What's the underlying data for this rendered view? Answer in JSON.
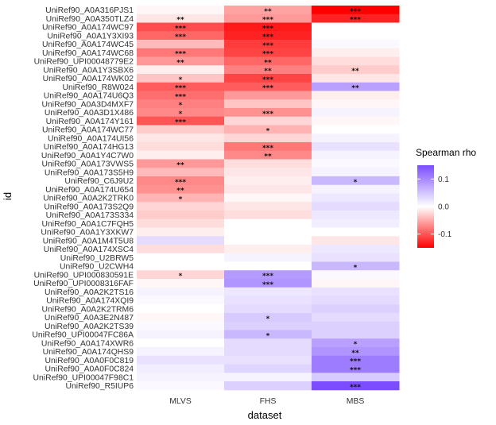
{
  "chart_data": {
    "type": "heatmap",
    "xlabel": "dataset",
    "ylabel": "id",
    "columns": [
      "MLVS",
      "FHS",
      "MBS"
    ],
    "rows": [
      "UniRef90_A0A316PJS1",
      "UniRef90_A0A350TLZ4",
      "UniRef90_A0A174WC97",
      "UniRef90_A0A1Y3XI93",
      "UniRef90_A0A174WC45",
      "UniRef90_A0A174WC68",
      "UniRef90_UPI00048779E2",
      "UniRef90_A0A1Y3SBX6",
      "UniRef90_A0A174WK02",
      "UniRef90_R8W024",
      "UniRef90_A0A174U6Q3",
      "UniRef90_A0A3D4MXF7",
      "UniRef90_A0A3D1X486",
      "UniRef90_A0A174Y161",
      "UniRef90_A0A174WC77",
      "UniRef90_A0A174UI56",
      "UniRef90_A0A174HG13",
      "UniRef90_A0A1Y4C7W0",
      "UniRef90_A0A173VWS5",
      "UniRef90_A0A173S5H9",
      "UniRef90_C6J9U2",
      "UniRef90_A0A174U654",
      "UniRef90_A0A2K2TRK0",
      "UniRef90_A0A173S2Q9",
      "UniRef90_A0A173S334",
      "UniRef90_A0A1C7FQH5",
      "UniRef90_A0A1Y3XKW7",
      "UniRef90_A0A1M4T5U8",
      "UniRef90_A0A174XSC4",
      "UniRef90_U2BRW5",
      "UniRef90_U2CWH4",
      "UniRef90_UPI000830591E",
      "UniRef90_UPI0008316FAF",
      "UniRef90_A0A2K2TS16",
      "UniRef90_A0A174XQI9",
      "UniRef90_A0A2K2TRM6",
      "UniRef90_A0A3E2N487",
      "UniRef90_A0A2K2TS39",
      "UniRef90_UPI00047FC86A",
      "UniRef90_A0A174XWR6",
      "UniRef90_A0A174QHS9",
      "UniRef90_A0A0F0C819",
      "UniRef90_A0A0F0C824",
      "UniRef90_UPI00047F98C1",
      "UniRef90_R5IUP6"
    ],
    "values": [
      [
        -0.005,
        -0.055,
        -0.15
      ],
      [
        -0.015,
        -0.06,
        -0.13
      ],
      [
        -0.105,
        -0.135,
        0.0
      ],
      [
        -0.09,
        -0.13,
        0.0
      ],
      [
        -0.04,
        -0.115,
        0.005
      ],
      [
        -0.08,
        -0.11,
        -0.01
      ],
      [
        -0.06,
        -0.09,
        -0.02
      ],
      [
        -0.01,
        -0.075,
        -0.03
      ],
      [
        -0.035,
        -0.11,
        -0.015
      ],
      [
        -0.095,
        -0.095,
        0.08
      ],
      [
        -0.085,
        -0.06,
        -0.01
      ],
      [
        -0.075,
        -0.035,
        -0.005
      ],
      [
        -0.07,
        -0.065,
        0.01
      ],
      [
        -0.1,
        -0.025,
        -0.005
      ],
      [
        -0.03,
        -0.045,
        0.0
      ],
      [
        -0.015,
        -0.025,
        0.01
      ],
      [
        -0.02,
        -0.08,
        0.025
      ],
      [
        -0.01,
        -0.07,
        0.01
      ],
      [
        -0.06,
        -0.02,
        0.005
      ],
      [
        -0.04,
        -0.015,
        0.01
      ],
      [
        -0.07,
        -0.01,
        0.06
      ],
      [
        -0.065,
        -0.015,
        0.01
      ],
      [
        -0.045,
        -0.005,
        0.02
      ],
      [
        -0.025,
        -0.015,
        0.03
      ],
      [
        -0.03,
        -0.02,
        0.02
      ],
      [
        -0.02,
        0.0,
        0.015
      ],
      [
        -0.01,
        0.0,
        0.0
      ],
      [
        0.03,
        0.0,
        -0.015
      ],
      [
        -0.02,
        -0.01,
        0.02
      ],
      [
        0.0,
        0.01,
        0.025
      ],
      [
        0.0,
        0.0,
        0.06
      ],
      [
        -0.025,
        0.085,
        0.005
      ],
      [
        -0.005,
        0.09,
        -0.005
      ],
      [
        0.01,
        0.02,
        0.025
      ],
      [
        0.005,
        0.025,
        0.03
      ],
      [
        0.0,
        0.03,
        0.04
      ],
      [
        -0.005,
        0.045,
        0.03
      ],
      [
        0.005,
        0.04,
        0.04
      ],
      [
        0.01,
        0.06,
        0.04
      ],
      [
        0.0,
        0.03,
        0.08
      ],
      [
        0.01,
        0.03,
        0.09
      ],
      [
        0.025,
        0.025,
        0.11
      ],
      [
        0.015,
        0.035,
        0.11
      ],
      [
        0.01,
        0.01,
        0.045
      ],
      [
        0.005,
        0.04,
        0.15
      ]
    ],
    "significance": [
      [
        "",
        "**",
        "***"
      ],
      [
        "**",
        "***",
        "***"
      ],
      [
        "***",
        "***",
        ""
      ],
      [
        "***",
        "***",
        ""
      ],
      [
        "",
        "***",
        ""
      ],
      [
        "***",
        "***",
        ""
      ],
      [
        "**",
        "**",
        ""
      ],
      [
        "",
        "**",
        "**"
      ],
      [
        "*",
        "***",
        ""
      ],
      [
        "***",
        "***",
        "**"
      ],
      [
        "***",
        "",
        ""
      ],
      [
        "*",
        "",
        ""
      ],
      [
        "*",
        "***",
        ""
      ],
      [
        "***",
        "",
        ""
      ],
      [
        "",
        "*",
        ""
      ],
      [
        "",
        "",
        ""
      ],
      [
        "",
        "***",
        ""
      ],
      [
        "",
        "**",
        ""
      ],
      [
        "**",
        "",
        ""
      ],
      [
        "",
        "",
        ""
      ],
      [
        "***",
        "",
        "*"
      ],
      [
        "**",
        "",
        ""
      ],
      [
        "*",
        "",
        ""
      ],
      [
        "",
        "",
        ""
      ],
      [
        "",
        "",
        ""
      ],
      [
        "",
        "",
        ""
      ],
      [
        "",
        "",
        ""
      ],
      [
        "",
        "",
        ""
      ],
      [
        "",
        "",
        ""
      ],
      [
        "",
        "",
        ""
      ],
      [
        "",
        "",
        "*"
      ],
      [
        "*",
        "***",
        ""
      ],
      [
        "",
        "***",
        ""
      ],
      [
        "",
        "",
        ""
      ],
      [
        "",
        "",
        ""
      ],
      [
        "",
        "",
        ""
      ],
      [
        "",
        "*",
        ""
      ],
      [
        "",
        "",
        ""
      ],
      [
        "",
        "*",
        ""
      ],
      [
        "",
        "",
        "*"
      ],
      [
        "",
        "",
        "**"
      ],
      [
        "",
        "",
        "***"
      ],
      [
        "",
        "",
        "***"
      ],
      [
        "",
        "",
        ""
      ],
      [
        "",
        "",
        "***"
      ]
    ],
    "legend": {
      "title": "Spearman rho",
      "ticks": [
        0.1,
        0.0,
        -0.1
      ],
      "tick_labels": [
        "0.1",
        "0.0",
        "-0.1"
      ],
      "range": [
        -0.15,
        0.15
      ],
      "low_color": "#ff0000",
      "mid_color": "#ffffff",
      "high_color": "#7b4dff"
    }
  }
}
